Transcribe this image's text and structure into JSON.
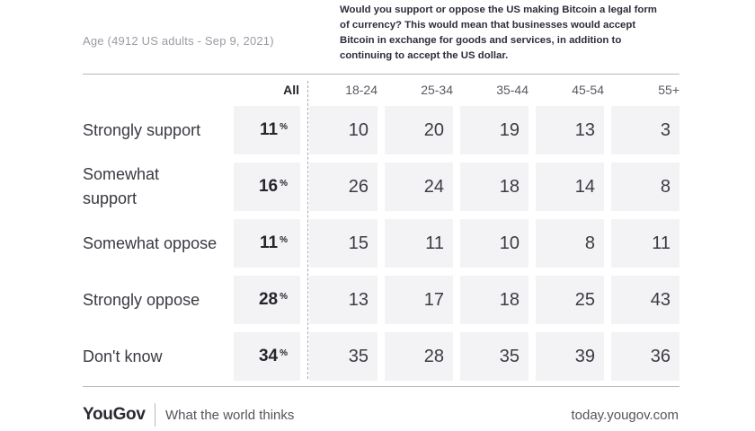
{
  "subtitle": "Age (4912 US adults - Sep 9, 2021)",
  "question": "Would you support or oppose the US making Bitcoin a legal form of currency? This would mean that businesses would accept Bitcoin in exchange for goods and services, in addition to continuing to accept the US dollar.",
  "columns": [
    "All",
    "18-24",
    "25-34",
    "35-44",
    "45-54",
    "55+"
  ],
  "percent_sign": "%",
  "rows": [
    {
      "label": "Strongly support",
      "values": [
        "11",
        "10",
        "20",
        "19",
        "13",
        "3"
      ]
    },
    {
      "label": "Somewhat support",
      "values": [
        "16",
        "26",
        "24",
        "18",
        "14",
        "8"
      ]
    },
    {
      "label": "Somewhat oppose",
      "values": [
        "11",
        "15",
        "11",
        "10",
        "8",
        "11"
      ]
    },
    {
      "label": "Strongly oppose",
      "values": [
        "28",
        "13",
        "17",
        "18",
        "25",
        "43"
      ]
    },
    {
      "label": "Don't know",
      "values": [
        "34",
        "35",
        "28",
        "35",
        "39",
        "36"
      ]
    }
  ],
  "footer": {
    "brand": "YouGov",
    "tagline": "What the world thinks",
    "url": "today.yougov.com"
  },
  "colors": {
    "cell_bg": "#f3f3f5",
    "text": "#33323b",
    "muted": "#9b9aa3"
  },
  "chart_data": {
    "type": "table",
    "title": "Would you support or oppose the US making Bitcoin a legal form of currency? This would mean that businesses would accept Bitcoin in exchange for goods and services, in addition to continuing to accept the US dollar.",
    "subtitle": "Age (4912 US adults - Sep 9, 2021)",
    "categories": [
      "Strongly support",
      "Somewhat support",
      "Somewhat oppose",
      "Strongly oppose",
      "Don't know"
    ],
    "series": [
      {
        "name": "All",
        "values": [
          11,
          16,
          11,
          28,
          34
        ]
      },
      {
        "name": "18-24",
        "values": [
          10,
          26,
          15,
          13,
          35
        ]
      },
      {
        "name": "25-34",
        "values": [
          20,
          24,
          11,
          17,
          28
        ]
      },
      {
        "name": "35-44",
        "values": [
          19,
          18,
          10,
          18,
          35
        ]
      },
      {
        "name": "45-54",
        "values": [
          13,
          14,
          8,
          25,
          39
        ]
      },
      {
        "name": "55+",
        "values": [
          3,
          8,
          11,
          43,
          36
        ]
      }
    ]
  }
}
